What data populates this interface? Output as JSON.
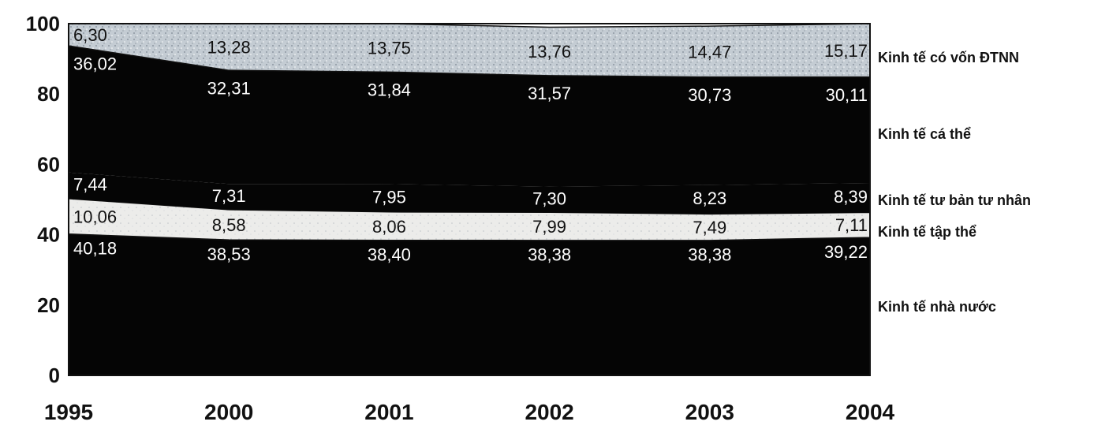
{
  "chart_data": {
    "type": "area",
    "stacked": true,
    "percent": true,
    "x": [
      "1995",
      "2000",
      "2001",
      "2002",
      "2003",
      "2004"
    ],
    "ylim": [
      0,
      100
    ],
    "yticks": [
      "0",
      "20",
      "40",
      "60",
      "80",
      "100"
    ],
    "series": [
      {
        "name": "Kinh tế nhà nước",
        "values": [
          "40,18",
          "38,53",
          "38,40",
          "38,38",
          "38,38",
          "39,22"
        ],
        "color": "#050505"
      },
      {
        "name": "Kinh tế tập thể",
        "values": [
          "10,06",
          "8,58",
          "8,06",
          "7,99",
          "7,49",
          "7,11"
        ],
        "color": "#e8e8e4"
      },
      {
        "name": "Kinh tế tư bản tư nhân",
        "values": [
          "7,44",
          "7,31",
          "7,95",
          "7,30",
          "8,23",
          "8,39"
        ],
        "color": "#050505"
      },
      {
        "name": "Kinh tế cá thể",
        "values": [
          "36,02",
          "32,31",
          "31,84",
          "31,57",
          "30,73",
          "30,11"
        ],
        "color": "#050505"
      },
      {
        "name": "Kinh tế có vốn ĐTNN",
        "values": [
          "6,30",
          "13,28",
          "13,75",
          "13,76",
          "14,47",
          "15,17"
        ],
        "color": "#b9c3cc"
      }
    ],
    "legend_position": "right"
  }
}
